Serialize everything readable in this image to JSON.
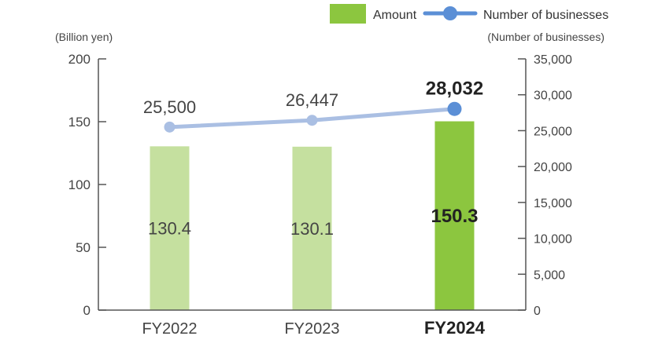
{
  "chart_data": {
    "type": "bar",
    "categories": [
      "FY2022",
      "FY2023",
      "FY2024"
    ],
    "highlight_category": "FY2024",
    "series": [
      {
        "name": "Amount",
        "kind": "bar",
        "axis": "left",
        "values": [
          130.4,
          130.1,
          150.3
        ],
        "labels": [
          "130.4",
          "130.1",
          "150.3"
        ],
        "color": "#c5e09f",
        "highlight_color": "#8cc63f"
      },
      {
        "name": "Number of businesses",
        "kind": "line",
        "axis": "right",
        "values": [
          25500,
          26447,
          28032
        ],
        "labels": [
          "25,500",
          "26,447",
          "28,032"
        ],
        "color": "#aabfe3",
        "highlight_color": "#5b8fd6"
      }
    ],
    "y_left": {
      "unit": "(Billion yen)",
      "range": [
        0,
        200
      ],
      "ticks": [
        0,
        50,
        100,
        150,
        200
      ],
      "tick_labels": [
        "0",
        "50",
        "100",
        "150",
        "200"
      ]
    },
    "y_right": {
      "unit": "(Number of businesses)",
      "range": [
        0,
        35000
      ],
      "ticks": [
        0,
        5000,
        10000,
        15000,
        20000,
        25000,
        30000,
        35000
      ],
      "tick_labels": [
        "0",
        "5,000",
        "10,000",
        "15,000",
        "20,000",
        "25,000",
        "30,000",
        "35,000"
      ]
    },
    "legend": {
      "position": "top-right",
      "items": [
        "Amount",
        "Number of businesses"
      ]
    },
    "grid": false,
    "axis_color": "#555555"
  }
}
